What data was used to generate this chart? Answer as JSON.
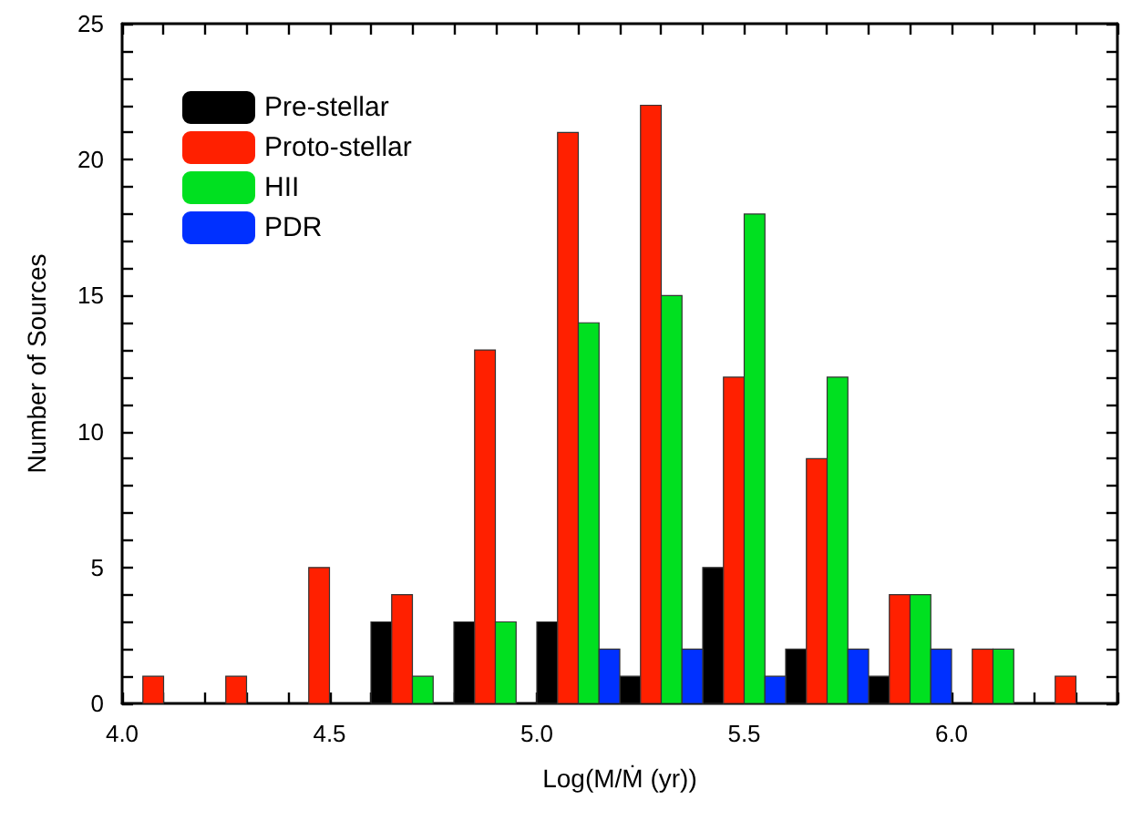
{
  "chart_data": {
    "type": "bar",
    "xlabel": "Log(M/Ṁ (yr))",
    "ylabel": "Number of Sources",
    "series": [
      {
        "name": "Pre-stellar",
        "color": "#000000",
        "x": [
          4.625,
          4.825,
          5.025,
          5.225,
          5.425,
          5.625,
          5.825
        ],
        "values": [
          3,
          3,
          3,
          1,
          5,
          2,
          1
        ]
      },
      {
        "name": "Proto-stellar",
        "color": "#ff2000",
        "x": [
          4.075,
          4.275,
          4.475,
          4.675,
          4.875,
          5.075,
          5.275,
          5.475,
          5.675,
          5.875,
          6.075,
          6.275
        ],
        "values": [
          1,
          1,
          5,
          4,
          13,
          21,
          22,
          12,
          9,
          4,
          2,
          1
        ]
      },
      {
        "name": "HII",
        "color": "#00e020",
        "x": [
          4.725,
          4.925,
          5.125,
          5.325,
          5.525,
          5.725,
          5.925,
          6.125
        ],
        "values": [
          1,
          3,
          14,
          15,
          18,
          12,
          4,
          2
        ]
      },
      {
        "name": "PDR",
        "color": "#0030ff",
        "x": [
          5.175,
          5.375,
          5.575,
          5.775,
          5.975
        ],
        "values": [
          2,
          2,
          1,
          2,
          2
        ]
      }
    ],
    "xlim": [
      4.0,
      6.4
    ],
    "xticks": [
      {
        "value": 4.0,
        "label": "4.0"
      },
      {
        "value": 4.1,
        "label": null
      },
      {
        "value": 4.2,
        "label": null
      },
      {
        "value": 4.3,
        "label": null
      },
      {
        "value": 4.4,
        "label": null
      },
      {
        "value": 4.5,
        "label": "4.5"
      },
      {
        "value": 4.6,
        "label": null
      },
      {
        "value": 4.7,
        "label": null
      },
      {
        "value": 4.8,
        "label": null
      },
      {
        "value": 4.9,
        "label": null
      },
      {
        "value": 5.0,
        "label": "5.0"
      },
      {
        "value": 5.1,
        "label": null
      },
      {
        "value": 5.2,
        "label": null
      },
      {
        "value": 5.3,
        "label": null
      },
      {
        "value": 5.4,
        "label": null
      },
      {
        "value": 5.5,
        "label": "5.5"
      },
      {
        "value": 5.6,
        "label": null
      },
      {
        "value": 5.7,
        "label": null
      },
      {
        "value": 5.8,
        "label": null
      },
      {
        "value": 5.9,
        "label": null
      },
      {
        "value": 6.0,
        "label": "6.0"
      },
      {
        "value": 6.1,
        "label": null
      },
      {
        "value": 6.2,
        "label": null
      },
      {
        "value": 6.3,
        "label": null
      },
      {
        "value": 6.4,
        "label": null
      }
    ],
    "ylim": [
      0,
      25
    ],
    "yticks": [
      0,
      {
        "value": 1,
        "label": null
      },
      {
        "value": 2,
        "label": null
      },
      {
        "value": 3,
        "label": null
      },
      {
        "value": 4,
        "label": null
      },
      5,
      {
        "value": 6,
        "label": null
      },
      {
        "value": 7,
        "label": null
      },
      {
        "value": 8,
        "label": null
      },
      {
        "value": 9,
        "label": null
      },
      10,
      {
        "value": 11,
        "label": null
      },
      {
        "value": 12,
        "label": null
      },
      {
        "value": 13,
        "label": null
      },
      {
        "value": 14,
        "label": null
      },
      15,
      {
        "value": 16,
        "label": null
      },
      {
        "value": 17,
        "label": null
      },
      {
        "value": 18,
        "label": null
      },
      {
        "value": 19,
        "label": null
      },
      20,
      {
        "value": 21,
        "label": null
      },
      {
        "value": 22,
        "label": null
      },
      {
        "value": 23,
        "label": null
      },
      {
        "value": 24,
        "label": null
      },
      25
    ],
    "legend": "top left",
    "grid": false
  }
}
